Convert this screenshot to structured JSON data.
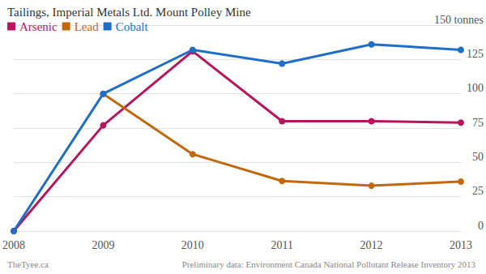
{
  "chart_data": {
    "type": "line",
    "title": "Tailings, Imperial Metals Ltd. Mount Polley Mine",
    "categories": [
      "2008",
      "2009",
      "2010",
      "2011",
      "2012",
      "2013"
    ],
    "series": [
      {
        "name": "Arsenic",
        "color": "#b5165c",
        "values": [
          0,
          77,
          131,
          80,
          80,
          79
        ]
      },
      {
        "name": "Lead",
        "color": "#c0690f",
        "values": [
          null,
          100,
          56,
          36.5,
          33,
          36
        ]
      },
      {
        "name": "Cobalt",
        "color": "#1f6fc6",
        "values": [
          0,
          100,
          132,
          122,
          136,
          132
        ]
      }
    ],
    "ylim": [
      0,
      150
    ],
    "yticks": [
      0,
      25,
      50,
      75,
      100,
      125,
      {
        "value": 150,
        "label": "150 tonnes"
      }
    ],
    "grid": true,
    "legend": "top-left",
    "marker": "circle",
    "annotations": [
      "TheTyee.ca",
      "Preliminary data: Environment Canada National Pollutant Release Inventory 2013"
    ]
  }
}
